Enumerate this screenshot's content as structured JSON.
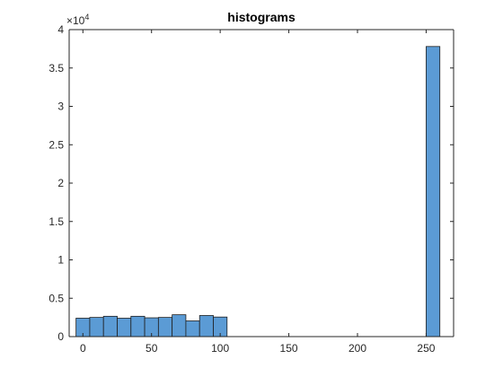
{
  "chart_data": {
    "type": "bar",
    "title": "histograms",
    "xlabel": "",
    "ylabel": "",
    "xlim": [
      -10,
      270
    ],
    "ylim": [
      0,
      40000
    ],
    "bin_width": 10,
    "bins": [
      {
        "x0": -5,
        "x1": 5,
        "value": 2400
      },
      {
        "x0": 5,
        "x1": 15,
        "value": 2500
      },
      {
        "x0": 15,
        "x1": 25,
        "value": 2650
      },
      {
        "x0": 25,
        "x1": 35,
        "value": 2400
      },
      {
        "x0": 35,
        "x1": 45,
        "value": 2650
      },
      {
        "x0": 45,
        "x1": 55,
        "value": 2450
      },
      {
        "x0": 55,
        "x1": 65,
        "value": 2500
      },
      {
        "x0": 65,
        "x1": 75,
        "value": 2850
      },
      {
        "x0": 75,
        "x1": 85,
        "value": 2050
      },
      {
        "x0": 85,
        "x1": 95,
        "value": 2750
      },
      {
        "x0": 95,
        "x1": 105,
        "value": 2550
      },
      {
        "x0": 250,
        "x1": 260,
        "value": 37800
      }
    ],
    "x_ticks": [
      0,
      50,
      100,
      150,
      200,
      250
    ],
    "x_tick_labels": [
      "0",
      "50",
      "100",
      "150",
      "200",
      "250"
    ],
    "y_ticks": [
      0,
      5000,
      10000,
      15000,
      20000,
      25000,
      30000,
      35000,
      40000
    ],
    "y_tick_labels": [
      "0",
      "0.5",
      "1",
      "1.5",
      "2",
      "2.5",
      "3",
      "3.5",
      "4"
    ],
    "y_exponent_base": "×10",
    "y_exponent_power": "4",
    "grid": false,
    "colors": {
      "bar_fill": "#5b9bd5",
      "bar_stroke": "#1f1f1f",
      "axis": "#262626"
    }
  }
}
